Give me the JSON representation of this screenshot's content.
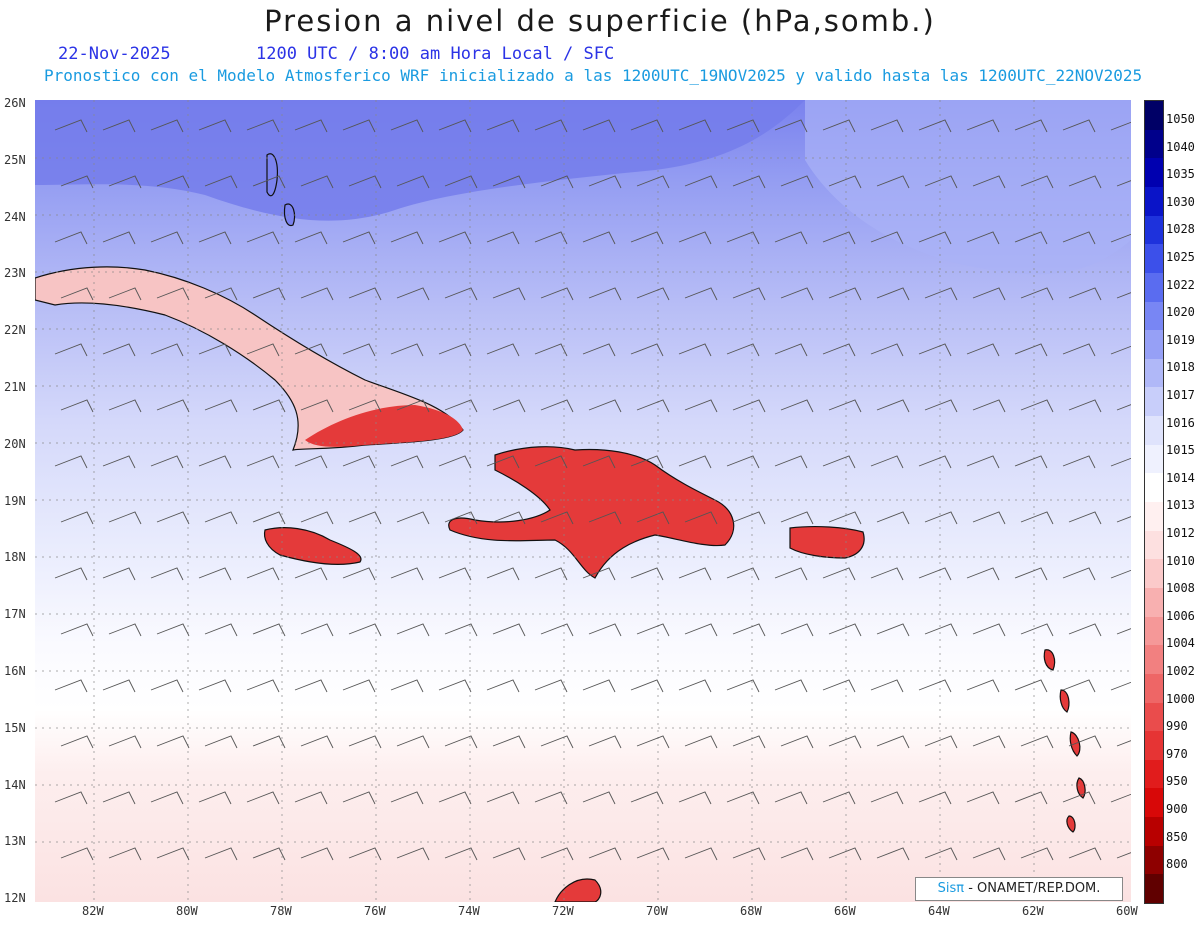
{
  "header": {
    "title": "Presion a nivel de superficie (hPa,somb.)",
    "date": "22-Nov-2025",
    "time": "1200 UTC / 8:00 am Hora Local / SFC",
    "subtitle": "Pronostico con el Modelo Atmosferico WRF inicializado a las 1200UTC_19NOV2025 y valido hasta las  1200UTC_22NOV2025"
  },
  "credit": {
    "brand": "Sisπ",
    "text": " - ONAMET/REP.DOM."
  },
  "axes": {
    "lat_labels": [
      "26N",
      "25N",
      "24N",
      "23N",
      "22N",
      "21N",
      "20N",
      "19N",
      "18N",
      "17N",
      "16N",
      "15N",
      "14N",
      "13N",
      "12N"
    ],
    "lon_labels": [
      "82W",
      "80W",
      "78W",
      "76W",
      "74W",
      "72W",
      "70W",
      "68W",
      "66W",
      "64W",
      "62W",
      "60W"
    ]
  },
  "colorbar": {
    "labels": [
      "1050",
      "1040",
      "1035",
      "1030",
      "1028",
      "1025",
      "1022",
      "1020",
      "1019",
      "1018",
      "1017",
      "1016",
      "1015",
      "1014",
      "1013",
      "1012",
      "1010",
      "1008",
      "1006",
      "1004",
      "1002",
      "1000",
      "990",
      "970",
      "950",
      "900",
      "850",
      "800"
    ],
    "colors": [
      "#000066",
      "#00008b",
      "#0000b0",
      "#0a14c8",
      "#1e32dc",
      "#3c50ea",
      "#5a6cf0",
      "#7886f4",
      "#96a0f6",
      "#b0b8f8",
      "#c8cefa",
      "#dfe3fc",
      "#eff1fe",
      "#ffffff",
      "#fff0f0",
      "#fde0e0",
      "#fbcaca",
      "#f8b0b0",
      "#f59898",
      "#f28080",
      "#ee6666",
      "#ea4c4c",
      "#e63434",
      "#e11c1c",
      "#d80808",
      "#b80000",
      "#8e0000",
      "#600000"
    ]
  }
}
